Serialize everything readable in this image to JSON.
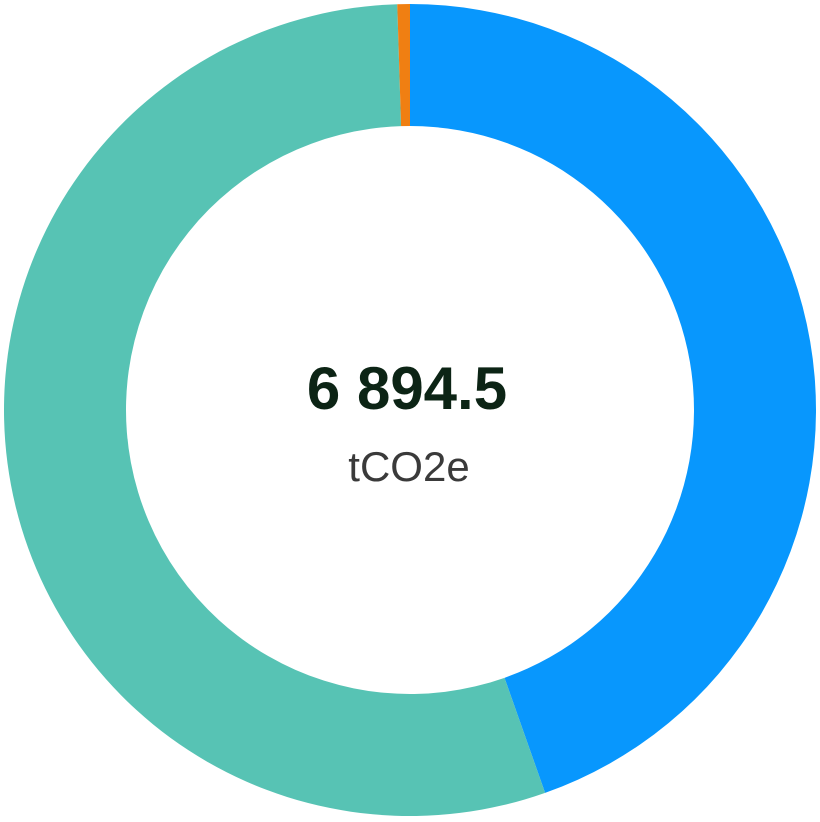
{
  "chart_data": {
    "type": "donut",
    "center_label": "6 894.5",
    "center_unit": "tCO2e",
    "values": [
      3075,
      3785,
      34.5
    ],
    "colors": [
      "#0897fd",
      "#57c3b4",
      "#f07f12"
    ]
  }
}
